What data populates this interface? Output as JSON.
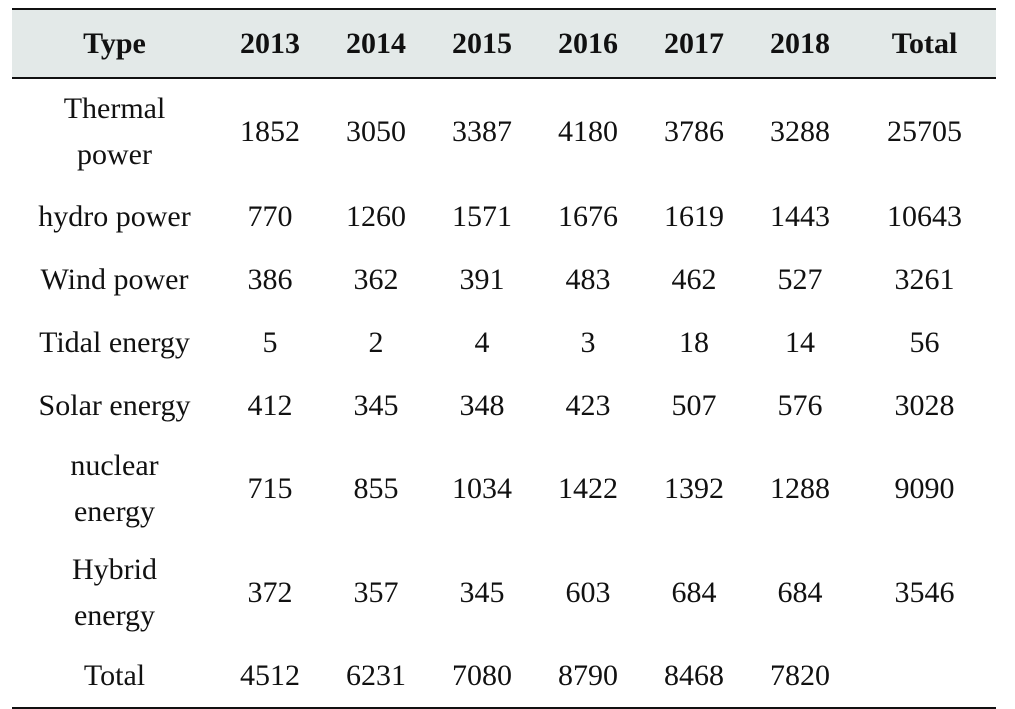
{
  "table": {
    "headers": [
      "Type",
      "2013",
      "2014",
      "2015",
      "2016",
      "2017",
      "2018",
      "Total"
    ],
    "rows": [
      {
        "type_lines": [
          "Thermal",
          "power"
        ],
        "values": [
          "1852",
          "3050",
          "3387",
          "4180",
          "3786",
          "3288",
          "25705"
        ]
      },
      {
        "type_lines": [
          "hydro power"
        ],
        "values": [
          "770",
          "1260",
          "1571",
          "1676",
          "1619",
          "1443",
          "10643"
        ]
      },
      {
        "type_lines": [
          "Wind power"
        ],
        "values": [
          "386",
          "362",
          "391",
          "483",
          "462",
          "527",
          "3261"
        ]
      },
      {
        "type_lines": [
          "Tidal energy"
        ],
        "values": [
          "5",
          "2",
          "4",
          "3",
          "18",
          "14",
          "56"
        ]
      },
      {
        "type_lines": [
          "Solar energy"
        ],
        "values": [
          "412",
          "345",
          "348",
          "423",
          "507",
          "576",
          "3028"
        ]
      },
      {
        "type_lines": [
          "nuclear",
          "energy"
        ],
        "values": [
          "715",
          "855",
          "1034",
          "1422",
          "1392",
          "1288",
          "9090"
        ]
      },
      {
        "type_lines": [
          "Hybrid",
          "energy"
        ],
        "values": [
          "372",
          "357",
          "345",
          "603",
          "684",
          "684",
          "3546"
        ]
      },
      {
        "type_lines": [
          "Total"
        ],
        "values": [
          "4512",
          "6231",
          "7080",
          "8790",
          "8468",
          "7820",
          ""
        ]
      }
    ]
  }
}
